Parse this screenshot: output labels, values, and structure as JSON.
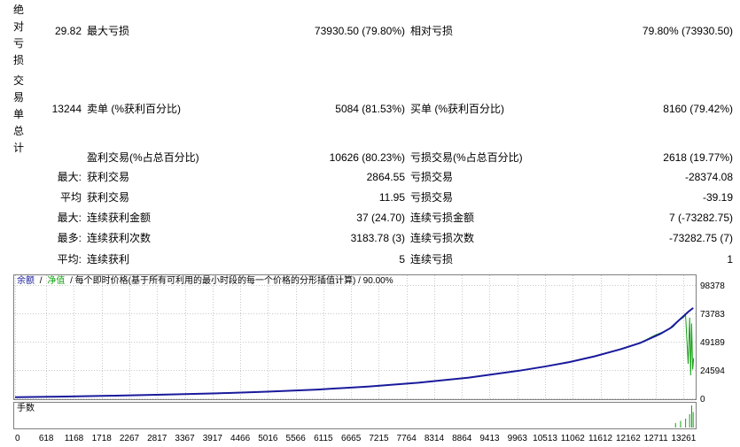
{
  "stats": {
    "section1_label": "绝对亏损",
    "section2_label": "交易单总计",
    "rows": [
      {
        "c1": "29.82",
        "c2": "最大亏损",
        "c3": "73930.50 (79.80%)",
        "c4": "相对亏损",
        "c5": "79.80% (73930.50)"
      },
      {
        "c1": "13244",
        "c2": "卖单 (%获利百分比)",
        "c3": "5084 (81.53%)",
        "c4": "买单 (%获利百分比)",
        "c5": "8160 (79.42%)"
      },
      {
        "c1": "",
        "c2": "盈利交易(%占总百分比)",
        "c3": "10626 (80.23%)",
        "c4": "亏损交易(%占总百分比)",
        "c5": "2618 (19.77%)"
      },
      {
        "c1": "最大:",
        "c2": "获利交易",
        "c3": "2864.55",
        "c4": "亏损交易",
        "c5": "-28374.08"
      },
      {
        "c1": "平均",
        "c2": "获利交易",
        "c3": "11.95",
        "c4": "亏损交易",
        "c5": "-39.19"
      },
      {
        "c1": "最大:",
        "c2": "连续获利金额",
        "c3": "37 (24.70)",
        "c4": "连续亏损金额",
        "c5": "7 (-73282.75)"
      },
      {
        "c1": "最多:",
        "c2": "连续获利次数",
        "c3": "3183.78 (3)",
        "c4": "连续亏损次数",
        "c5": "-73282.75 (7)"
      },
      {
        "c1": "平均:",
        "c2": "连续获利",
        "c3": "5",
        "c4": "连续亏损",
        "c5": "1"
      }
    ]
  },
  "chart_data": {
    "type": "line",
    "legend_balance": "余额",
    "legend_sep1": "/",
    "legend_equity": "净值",
    "legend_rest": "/ 每个即时价格(基于所有可利用的最小时段的每一个价格的分形插值计算) / 90.00%",
    "lots_label": "手数",
    "y_ticks": [
      "98378",
      "73783",
      "49189",
      "24594",
      "0"
    ],
    "y_tick_values": [
      98378,
      73783,
      49189,
      24594,
      0
    ],
    "x_ticks": [
      "0",
      "618",
      "1168",
      "1718",
      "2267",
      "2817",
      "3367",
      "3917",
      "4466",
      "5016",
      "5566",
      "6115",
      "6665",
      "7215",
      "7764",
      "8314",
      "8864",
      "9413",
      "9963",
      "10513",
      "11062",
      "11612",
      "12162",
      "12711",
      "13261"
    ],
    "x_tick_values": [
      0,
      618,
      1168,
      1718,
      2267,
      2817,
      3367,
      3917,
      4466,
      5016,
      5566,
      6115,
      6665,
      7215,
      7764,
      8314,
      8864,
      9413,
      9963,
      10513,
      11062,
      11612,
      12162,
      12711,
      13261
    ],
    "xlim": [
      0,
      13500
    ],
    "ylim": [
      0,
      98378
    ],
    "colors": {
      "balance": "#1a1a9c",
      "equity": "#12a012",
      "lots": "#12a012",
      "grid": "#c8c8c8"
    },
    "series": [
      {
        "name": "余额",
        "x": [
          0,
          1000,
          2000,
          3000,
          4000,
          5000,
          6000,
          7000,
          8000,
          9000,
          10000,
          10500,
          11000,
          11500,
          12000,
          12400,
          12800,
          13000,
          13200,
          13350,
          13450
        ],
        "y": [
          1000,
          1500,
          2300,
          3200,
          4300,
          5800,
          7600,
          10200,
          13500,
          18000,
          24000,
          27500,
          31500,
          36500,
          42500,
          48000,
          56000,
          61000,
          69000,
          75000,
          78500
        ]
      },
      {
        "name": "净值",
        "x": [
          11900,
          12100,
          12300,
          12500,
          12700,
          12900,
          13050,
          13150,
          13250,
          13300,
          13350,
          13380,
          13400,
          13420,
          13440,
          13460
        ],
        "y": [
          41000,
          43500,
          46500,
          50500,
          55000,
          58500,
          62000,
          67000,
          70000,
          72000,
          30000,
          70000,
          20000,
          65000,
          25000,
          35000
        ]
      }
    ],
    "lots_x": [
      13100,
      13200,
      13300,
      13380,
      13420,
      13450
    ],
    "lots_y": [
      0.2,
      0.3,
      0.4,
      0.6,
      1.0,
      0.7
    ]
  }
}
